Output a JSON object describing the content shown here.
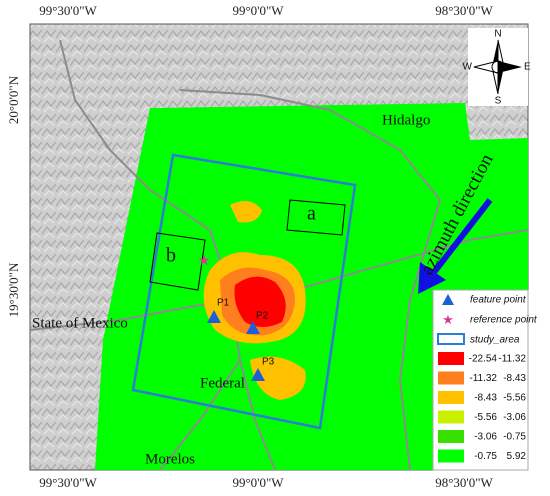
{
  "coordinates": {
    "top": [
      "99°30'0\"W",
      "99°0'0\"W",
      "98°30'0\"W"
    ],
    "bottom": [
      "99°30'0\"W",
      "99°0'0\"W",
      "98°30'0\"W"
    ],
    "left": [
      "20°0'0\"N",
      "19°30'0\"N"
    ]
  },
  "compass": {
    "n": "N",
    "s": "S",
    "e": "E",
    "w": "W"
  },
  "places": {
    "hidalgo": "Hidalgo",
    "state_of_mexico": "State of Mexico",
    "federal": "Federal",
    "morelos": "Morelos"
  },
  "boxes": {
    "a": "a",
    "b": "b"
  },
  "arrow_label": "azimuth direction",
  "points": [
    "P1",
    "P2",
    "P3"
  ],
  "legend": {
    "feature_point": "feature point",
    "reference_point": "reference point",
    "study_area": "study_area",
    "classes": [
      {
        "color": "#ff0000",
        "min": -22.54,
        "max": -11.32
      },
      {
        "color": "#ff7f1f",
        "min": -11.32,
        "max": -8.43
      },
      {
        "color": "#ffc000",
        "min": -8.43,
        "max": -5.56
      },
      {
        "color": "#c8f000",
        "min": -5.56,
        "max": -3.06
      },
      {
        "color": "#38e000",
        "min": -3.06,
        "max": -0.75
      },
      {
        "color": "#00ff00",
        "min": -0.75,
        "max": 5.92
      }
    ]
  }
}
